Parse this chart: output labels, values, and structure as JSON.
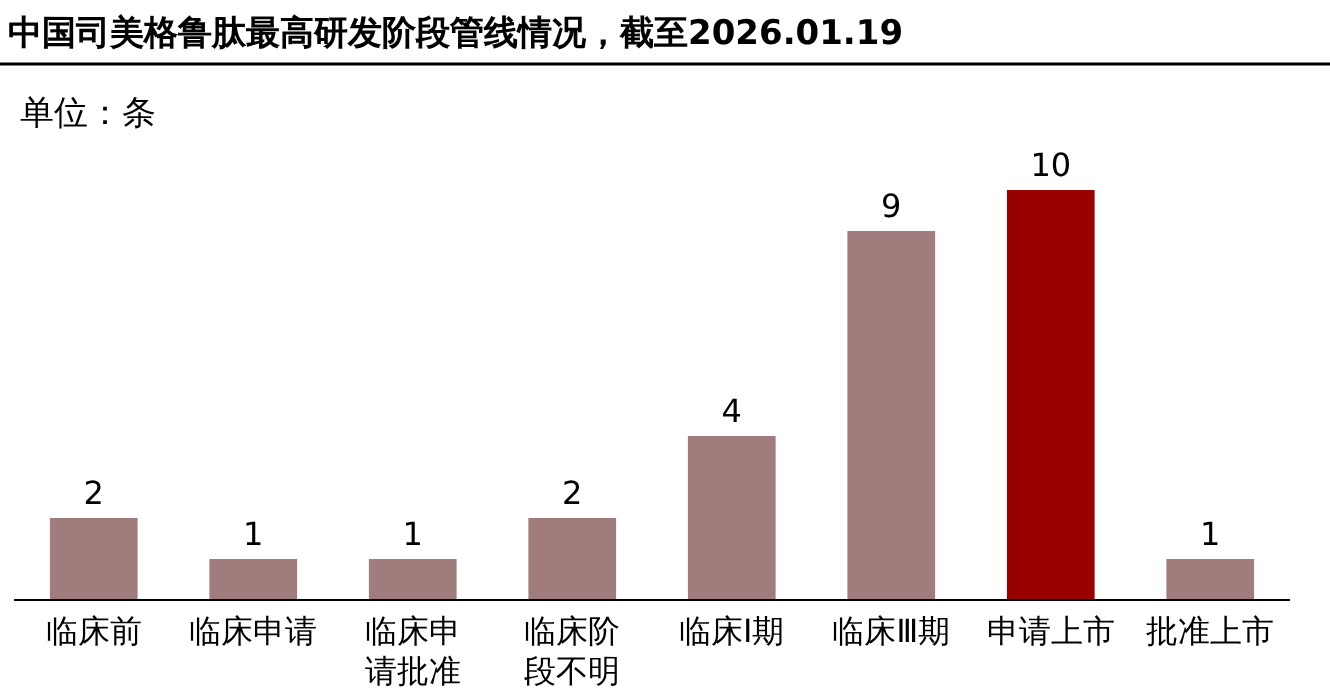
{
  "chart_data": {
    "type": "bar",
    "title": "中国司美格鲁肽最高研发阶段管线情况，截至2026.01.19",
    "subtitle": "单位：条",
    "categories": [
      "临床前",
      "临床申请",
      "临床申请批准",
      "临床阶段不明",
      "临床Ⅰ期",
      "临床Ⅲ期",
      "申请上市",
      "批准上市"
    ],
    "values": [
      2,
      1,
      1,
      2,
      4,
      9,
      10,
      1
    ],
    "colors": [
      "#a07c7c",
      "#a07c7c",
      "#a07c7c",
      "#a07c7c",
      "#a07c7c",
      "#a07c7c",
      "#990000",
      "#a07c7c"
    ],
    "data_labels": true
  }
}
